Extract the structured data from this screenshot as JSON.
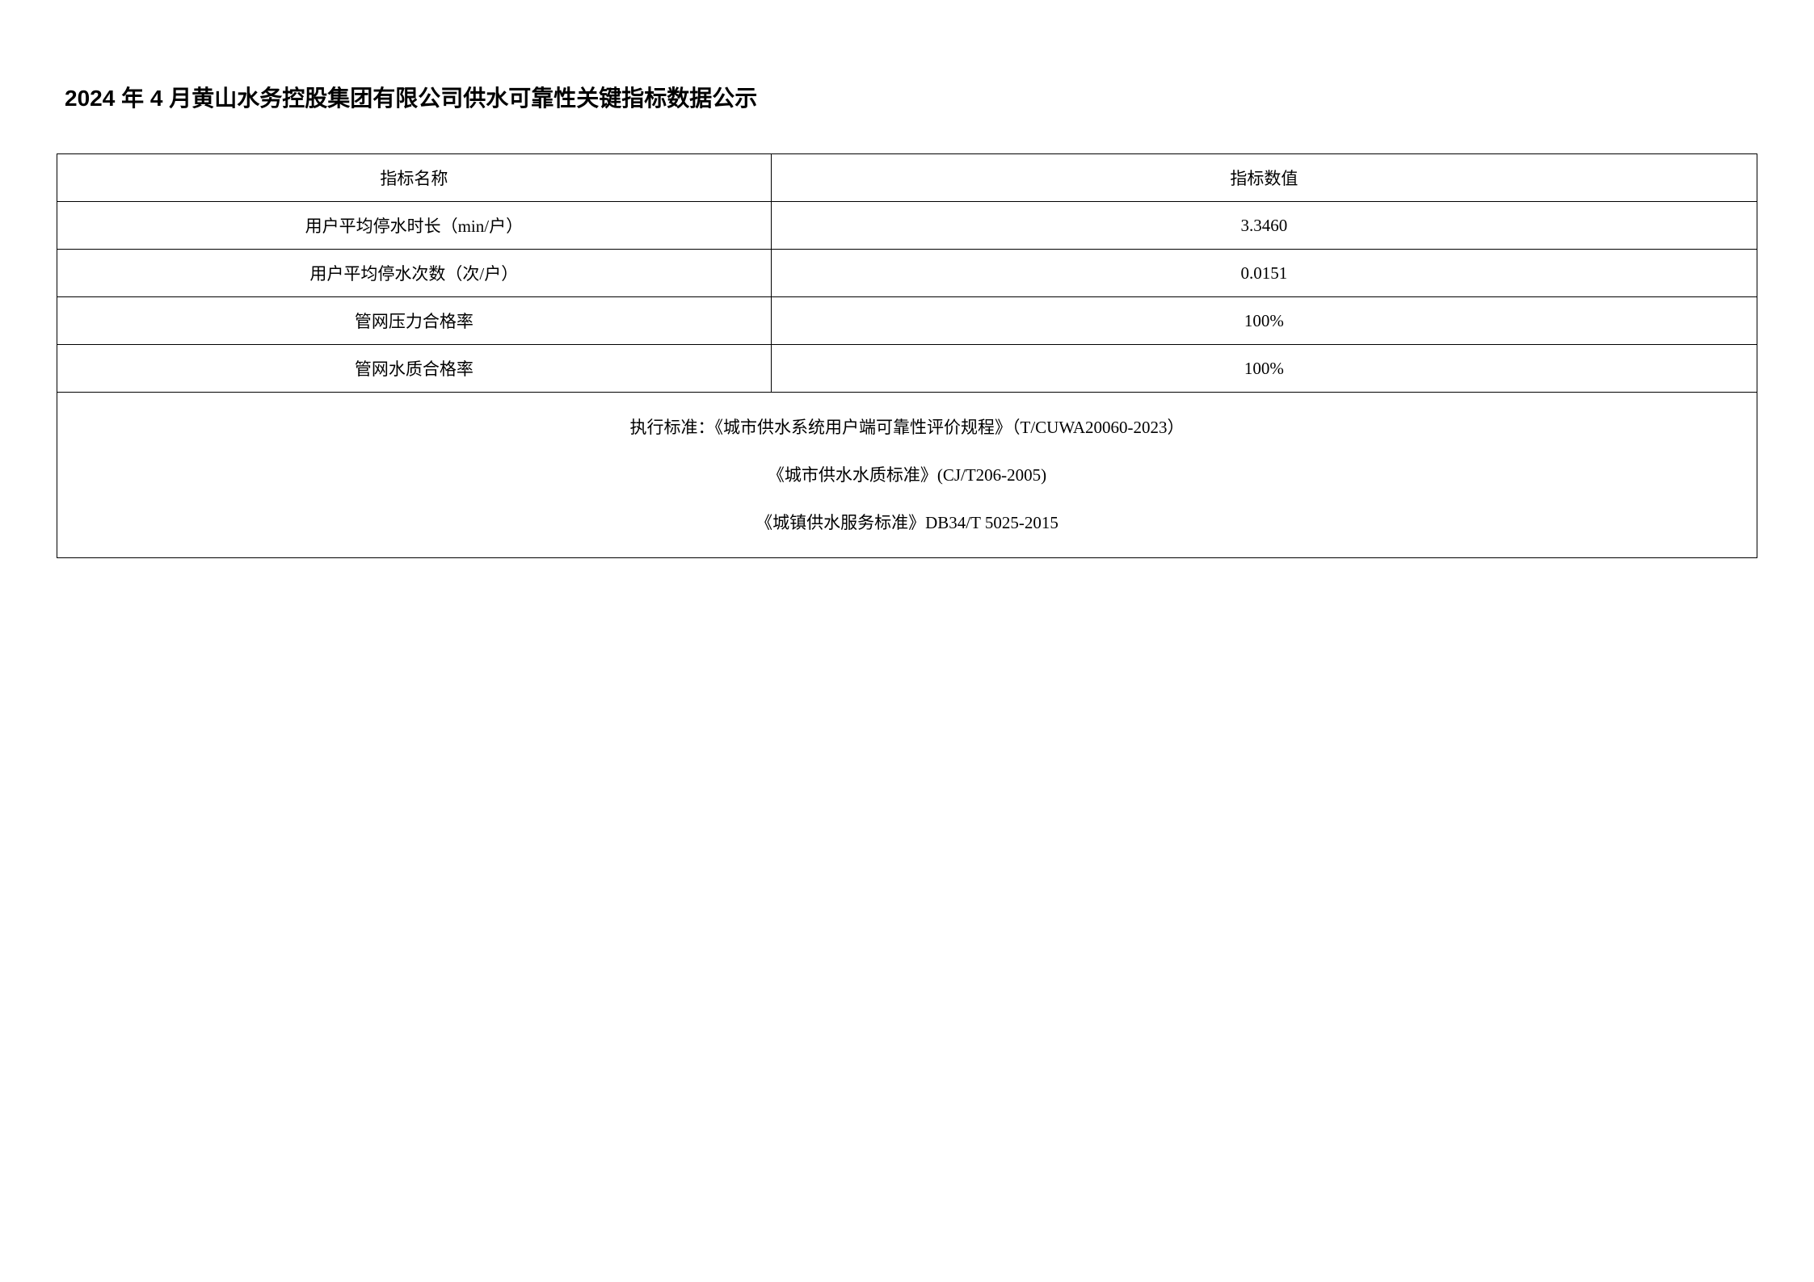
{
  "title": "2024 年 4 月黄山水务控股集团有限公司供水可靠性关键指标数据公示",
  "title_fontsize": 28,
  "table": {
    "header_fontsize": 21,
    "cell_fontsize": 21,
    "columns": [
      "指标名称",
      "指标数值"
    ],
    "rows": [
      {
        "name": "用户平均停水时长（min/户）",
        "value": "3.3460"
      },
      {
        "name": "用户平均停水次数（次/户）",
        "value": "0.0151"
      },
      {
        "name": "管网压力合格率",
        "value": "100%"
      },
      {
        "name": "管网水质合格率",
        "value": "100%"
      }
    ],
    "footer_lines": [
      "执行标准：《城市供水系统用户端可靠性评价规程》（T/CUWA20060-2023）",
      "《城市供水水质标准》(CJ/T206-2005)",
      "《城镇供水服务标准》DB34/T 5025-2015"
    ],
    "column_widths": [
      "42%",
      "58%"
    ]
  },
  "colors": {
    "background": "#ffffff",
    "text": "#000000",
    "border": "#000000"
  }
}
